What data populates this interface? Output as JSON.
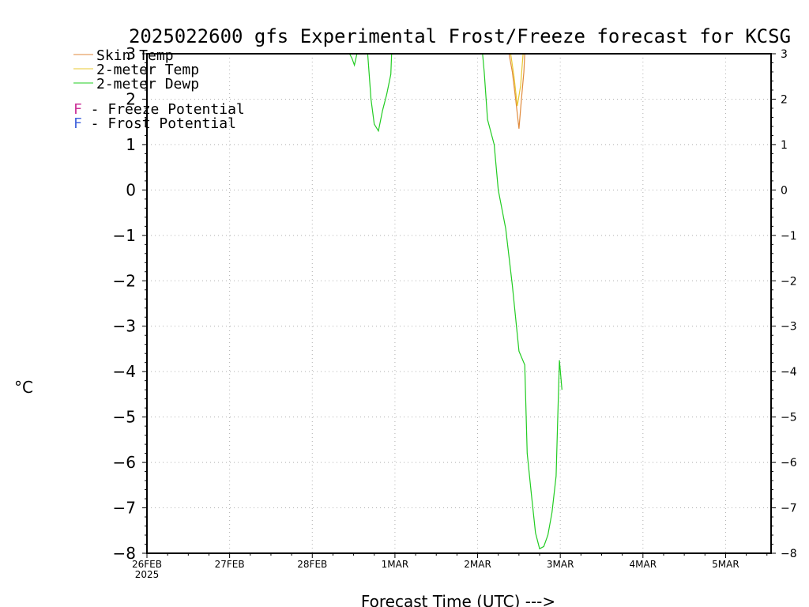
{
  "chart_data": {
    "type": "line",
    "title": "2025022600 gfs Experimental Frost/Freeze forecast for KCSG",
    "ylabel": "°C",
    "xlabel": "Forecast Time (UTC) --->",
    "ylim": [
      -8,
      3
    ],
    "xlim_days": [
      0,
      7.55
    ],
    "yticks": [
      -8,
      -7,
      -6,
      -5,
      -4,
      -3,
      -2,
      -1,
      0,
      1,
      2,
      3
    ],
    "xticks": [
      {
        "label": "26FEB",
        "sub": "2025",
        "day": 0
      },
      {
        "label": "27FEB",
        "sub": "",
        "day": 1
      },
      {
        "label": "28FEB",
        "sub": "",
        "day": 2
      },
      {
        "label": "1MAR",
        "sub": "",
        "day": 3
      },
      {
        "label": "2MAR",
        "sub": "",
        "day": 4
      },
      {
        "label": "3MAR",
        "sub": "",
        "day": 5
      },
      {
        "label": "4MAR",
        "sub": "",
        "day": 6
      },
      {
        "label": "5MAR",
        "sub": "",
        "day": 7
      }
    ],
    "grid": true,
    "legend": [
      {
        "name": "Skin Temp",
        "color": "#e08a3c"
      },
      {
        "name": "2-meter Temp",
        "color": "#e8c832"
      },
      {
        "name": "2-meter Dewp",
        "color": "#22cc22"
      }
    ],
    "annotations": [
      {
        "marker": "F",
        "marker_color": "#cc3399",
        "text": " - Freeze Potential"
      },
      {
        "marker": "F",
        "marker_color": "#4466dd",
        "text": " - Frost Potential"
      }
    ],
    "series": [
      {
        "name": "Skin Temp",
        "color": "#e08a3c",
        "segments": [
          [
            [
              4.38,
              3.0
            ],
            [
              4.42,
              2.6
            ],
            [
              4.46,
              2.0
            ],
            [
              4.5,
              1.35
            ],
            [
              4.53,
              2.0
            ],
            [
              4.56,
              2.6
            ],
            [
              4.57,
              3.0
            ]
          ]
        ]
      },
      {
        "name": "2-meter Temp",
        "color": "#e8c832",
        "segments": [
          [
            [
              4.4,
              3.0
            ],
            [
              4.44,
              2.5
            ],
            [
              4.48,
              1.85
            ],
            [
              4.52,
              2.3
            ],
            [
              4.55,
              3.0
            ]
          ]
        ]
      },
      {
        "name": "2-meter Dewp",
        "color": "#22cc22",
        "segments": [
          [
            [
              2.45,
              3.0
            ],
            [
              2.48,
              2.9
            ],
            [
              2.51,
              2.75
            ],
            [
              2.54,
              3.0
            ]
          ],
          [
            [
              2.67,
              3.0
            ],
            [
              2.71,
              2.0
            ],
            [
              2.75,
              1.45
            ],
            [
              2.8,
              1.3
            ],
            [
              2.85,
              1.75
            ],
            [
              2.9,
              2.1
            ],
            [
              2.95,
              2.55
            ],
            [
              2.96,
              3.0
            ]
          ],
          [
            [
              4.06,
              3.0
            ],
            [
              4.08,
              2.6
            ],
            [
              4.12,
              1.55
            ],
            [
              4.2,
              1.0
            ],
            [
              4.25,
              0.0
            ],
            [
              4.34,
              -0.85
            ],
            [
              4.42,
              -2.1
            ],
            [
              4.5,
              -3.55
            ],
            [
              4.57,
              -3.85
            ],
            [
              4.6,
              -5.8
            ],
            [
              4.65,
              -6.7
            ],
            [
              4.7,
              -7.55
            ],
            [
              4.75,
              -7.9
            ],
            [
              4.8,
              -7.85
            ],
            [
              4.85,
              -7.6
            ],
            [
              4.9,
              -7.1
            ],
            [
              4.95,
              -6.3
            ],
            [
              4.97,
              -5.0
            ],
            [
              4.99,
              -3.75
            ],
            [
              5.02,
              -4.4
            ]
          ]
        ]
      }
    ]
  }
}
